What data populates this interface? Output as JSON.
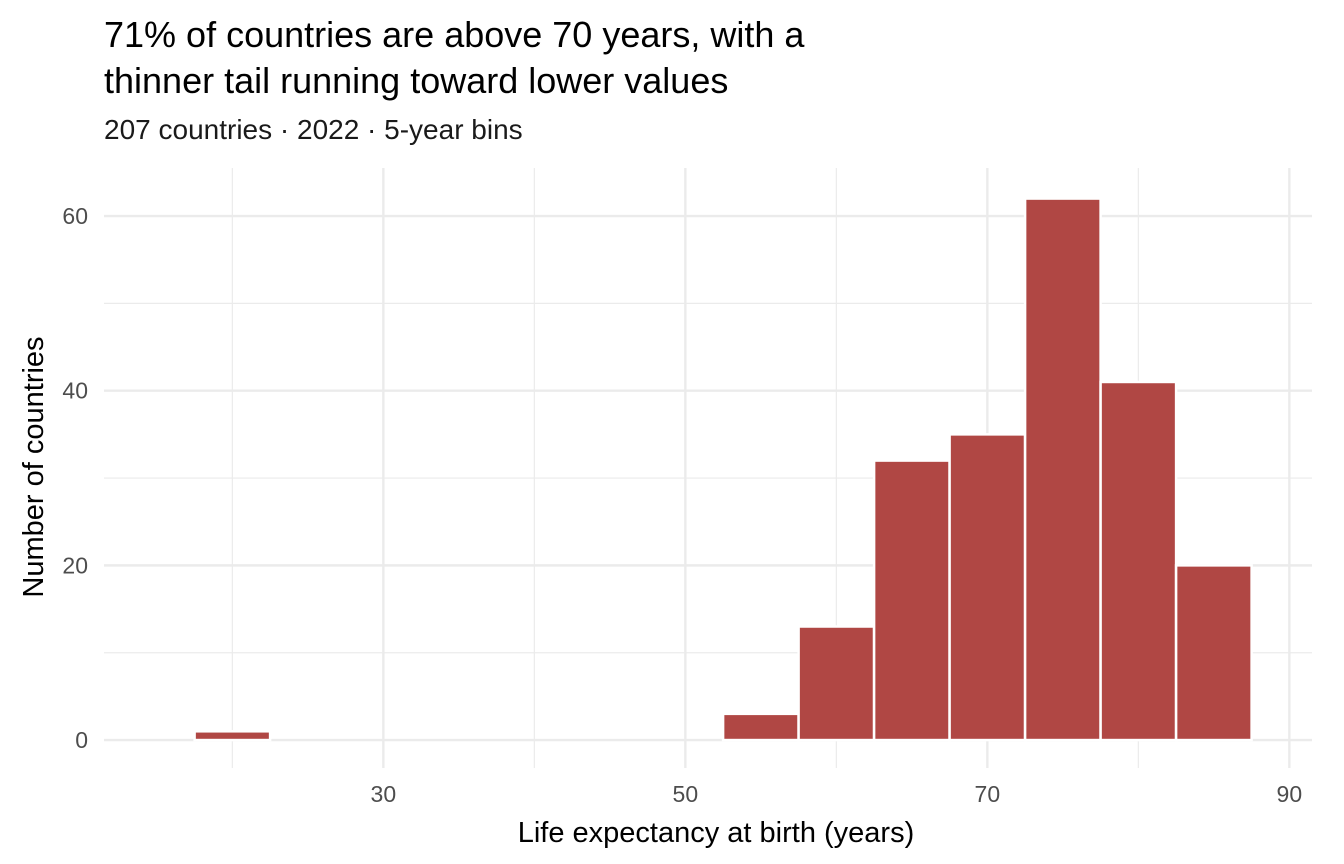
{
  "chart_data": {
    "type": "bar",
    "title_lines": [
      "71% of countries are above 70 years, with a",
      "thinner tail running toward lower values"
    ],
    "subtitle": "207 countries · 2022 · 5-year bins",
    "xlabel": "Life expectancy at birth (years)",
    "ylabel": "Number of countries",
    "bins": [
      {
        "x0": 17.5,
        "x1": 22.5,
        "count": 1
      },
      {
        "x0": 52.5,
        "x1": 57.5,
        "count": 3
      },
      {
        "x0": 57.5,
        "x1": 62.5,
        "count": 13
      },
      {
        "x0": 62.5,
        "x1": 67.5,
        "count": 32
      },
      {
        "x0": 67.5,
        "x1": 72.5,
        "count": 35
      },
      {
        "x0": 72.5,
        "x1": 77.5,
        "count": 62
      },
      {
        "x0": 77.5,
        "x1": 82.5,
        "count": 41
      },
      {
        "x0": 82.5,
        "x1": 87.5,
        "count": 20
      }
    ],
    "xlim": [
      11.5,
      91.5
    ],
    "ylim": [
      -3.2,
      65.5
    ],
    "x_ticks": [
      30,
      50,
      70,
      90
    ],
    "x_minor_ticks": [
      20,
      40,
      60,
      80
    ],
    "y_ticks": [
      0,
      20,
      40,
      60
    ],
    "y_minor_ticks": [
      10,
      30,
      50
    ],
    "bar_color": "#b04744",
    "bar_edge_color": "#ffffff",
    "grid": true,
    "grid_color": "#ebebeb",
    "legend": "none"
  }
}
